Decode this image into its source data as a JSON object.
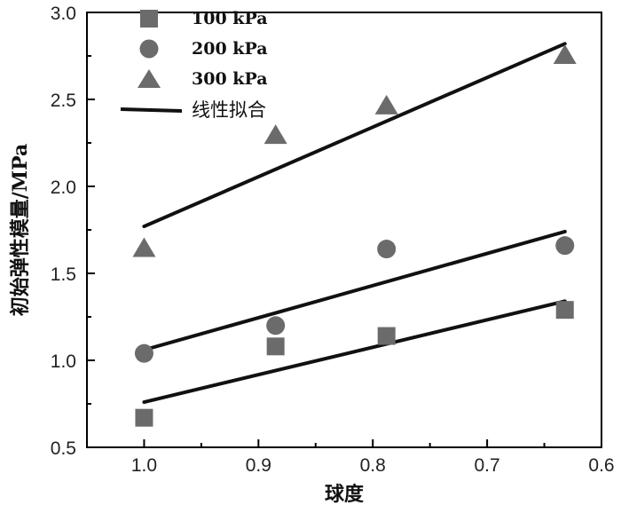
{
  "chart_data": {
    "type": "scatter",
    "title": "",
    "xlabel": "球度",
    "ylabel": "初始弹性模量/MPa",
    "xlim": [
      1.05,
      0.6
    ],
    "ylim": [
      0.5,
      3.0
    ],
    "x_reversed": true,
    "xticks": [
      "1.0",
      "0.9",
      "0.8",
      "0.7",
      "0.6"
    ],
    "yticks": [
      "0.5",
      "1.0",
      "1.5",
      "2.0",
      "2.5",
      "3.0"
    ],
    "legend_position": "top-left",
    "series": [
      {
        "name": "100 kPa",
        "marker": "square",
        "color": "#6b6b6b",
        "x": [
          1.0,
          0.885,
          0.788,
          0.632
        ],
        "y": [
          0.67,
          1.08,
          1.14,
          1.29
        ],
        "fit": {
          "x": [
            1.0,
            0.632
          ],
          "y": [
            0.76,
            1.34
          ]
        }
      },
      {
        "name": "200 kPa",
        "marker": "circle",
        "color": "#6b6b6b",
        "x": [
          1.0,
          0.885,
          0.788,
          0.632
        ],
        "y": [
          1.04,
          1.2,
          1.64,
          1.66
        ],
        "fit": {
          "x": [
            1.0,
            0.632
          ],
          "y": [
            1.06,
            1.74
          ]
        }
      },
      {
        "name": "300 kPa",
        "marker": "triangle",
        "color": "#6b6b6b",
        "x": [
          1.0,
          0.885,
          0.788,
          0.632
        ],
        "y": [
          1.64,
          2.29,
          2.46,
          2.75
        ],
        "fit": {
          "x": [
            1.0,
            0.632
          ],
          "y": [
            1.77,
            2.82
          ]
        }
      }
    ],
    "fit_label": "线性拟合",
    "fit_color": "#111111"
  }
}
